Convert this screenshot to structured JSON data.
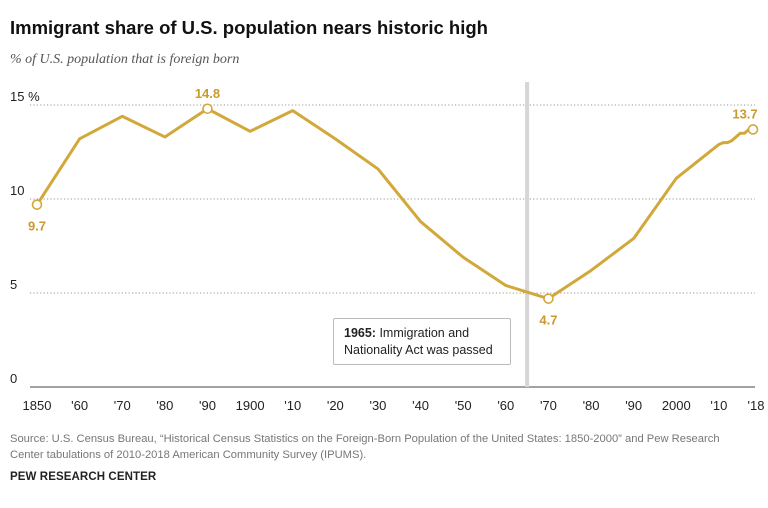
{
  "header": {
    "title": "Immigrant share of U.S. population nears historic high",
    "subtitle": "% of U.S. population that is foreign born"
  },
  "annotation": {
    "year_label": "1965:",
    "text_line1": " Immigration and",
    "text_line2": "Nationality Act was passed"
  },
  "footer": {
    "source": "Source: U.S. Census Bureau, “Historical Census Statistics on the Foreign-Born Population of the United States: 1850-2000” and Pew Research Center tabulations of 2010-2018 American Community Survey (IPUMS).",
    "brand": "PEW RESEARCH CENTER"
  },
  "colors": {
    "line": "#D2A83A",
    "label": "#C99A2E",
    "grid": "#999999",
    "marker_line": "#d6d6d6",
    "axis_text": "#222222"
  },
  "chart_data": {
    "type": "line",
    "x": [
      1850,
      1860,
      1870,
      1880,
      1890,
      1900,
      1910,
      1920,
      1930,
      1940,
      1950,
      1960,
      1970,
      1980,
      1990,
      2000,
      2010,
      2011,
      2012,
      2013,
      2014,
      2015,
      2016,
      2017,
      2018
    ],
    "series": [
      {
        "values": [
          9.7,
          13.2,
          14.4,
          13.3,
          14.8,
          13.6,
          14.7,
          13.2,
          11.6,
          8.8,
          6.9,
          5.4,
          4.7,
          6.2,
          7.9,
          11.1,
          12.9,
          13.0,
          13.0,
          13.1,
          13.3,
          13.5,
          13.5,
          13.7,
          13.7
        ]
      }
    ],
    "ylim": [
      0,
      15
    ],
    "yticks": [
      0,
      5,
      10,
      15
    ],
    "ytick_labels": [
      "0",
      "5",
      "10",
      "15 %"
    ],
    "xlim": [
      1850,
      2018
    ],
    "xticks": [
      1850,
      1860,
      1870,
      1880,
      1890,
      1900,
      1910,
      1920,
      1930,
      1940,
      1950,
      1960,
      1970,
      1980,
      1990,
      2000,
      2010,
      2018
    ],
    "xtick_labels": [
      "1850",
      "'60",
      "'70",
      "'80",
      "'90",
      "1900",
      "'10",
      "'20",
      "'30",
      "'40",
      "'50",
      "'60",
      "'70",
      "'80",
      "'90",
      "2000",
      "'10",
      "'18"
    ],
    "grid": "horizontal-dotted",
    "highlighted_points": [
      {
        "x": 1850,
        "y": 9.7,
        "label": "9.7"
      },
      {
        "x": 1890,
        "y": 14.8,
        "label": "14.8"
      },
      {
        "x": 1970,
        "y": 4.7,
        "label": "4.7"
      },
      {
        "x": 2018,
        "y": 13.7,
        "label": "13.7"
      }
    ],
    "vertical_marker": {
      "x": 1965
    }
  }
}
